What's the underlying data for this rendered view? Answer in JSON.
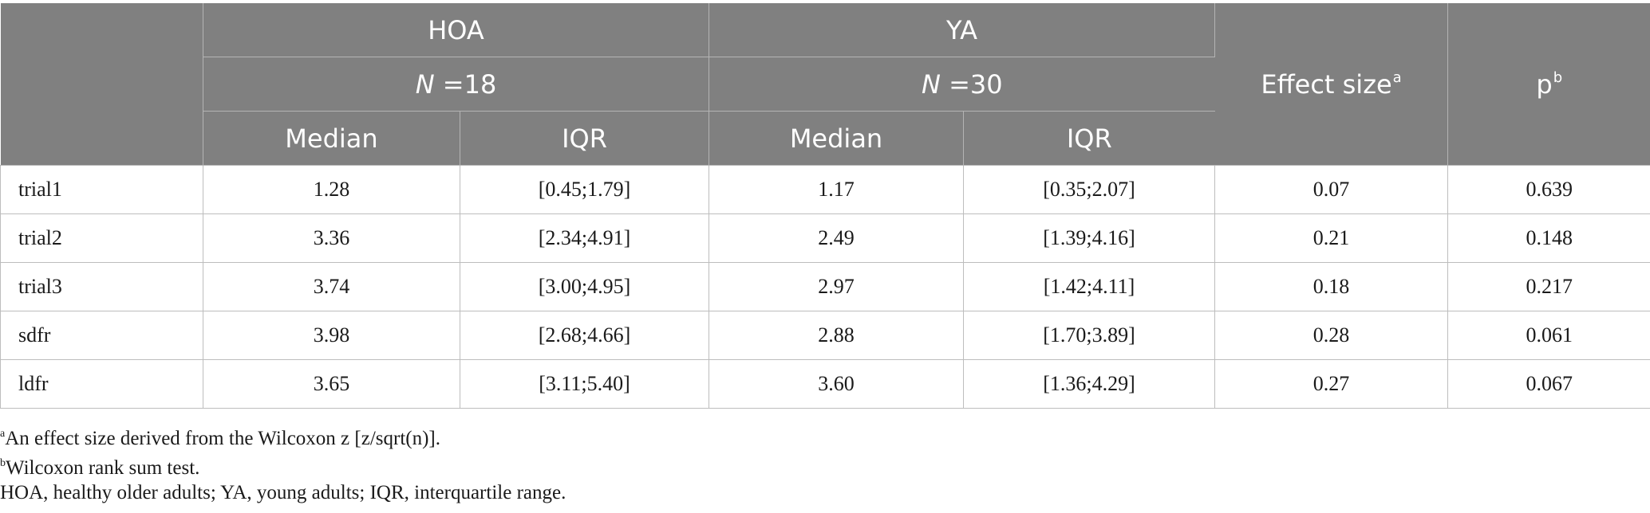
{
  "table": {
    "header": {
      "group1": {
        "label": "HOA",
        "n_prefix": "N",
        "n_value": " =18"
      },
      "group2": {
        "label": "YA",
        "n_prefix": "N",
        "n_value": " =30"
      },
      "effect_size": {
        "label": "Effect size",
        "mark": "a"
      },
      "p": {
        "label": "p",
        "mark": "b"
      },
      "median": "Median",
      "iqr": "IQR"
    },
    "rows": [
      {
        "label": "trial1",
        "hoa_median": "1.28",
        "hoa_iqr": "[0.45;1.79]",
        "ya_median": "1.17",
        "ya_iqr": "[0.35;2.07]",
        "effect_size": "0.07",
        "p": "0.639"
      },
      {
        "label": "trial2",
        "hoa_median": "3.36",
        "hoa_iqr": "[2.34;4.91]",
        "ya_median": "2.49",
        "ya_iqr": "[1.39;4.16]",
        "effect_size": "0.21",
        "p": "0.148"
      },
      {
        "label": "trial3",
        "hoa_median": "3.74",
        "hoa_iqr": "[3.00;4.95]",
        "ya_median": "2.97",
        "ya_iqr": "[1.42;4.11]",
        "effect_size": "0.18",
        "p": "0.217"
      },
      {
        "label": "sdfr",
        "hoa_median": "3.98",
        "hoa_iqr": "[2.68;4.66]",
        "ya_median": "2.88",
        "ya_iqr": "[1.70;3.89]",
        "effect_size": "0.28",
        "p": "0.061"
      },
      {
        "label": "ldfr",
        "hoa_median": "3.65",
        "hoa_iqr": "[3.11;5.40]",
        "ya_median": "3.60",
        "ya_iqr": "[1.36;4.29]",
        "effect_size": "0.27",
        "p": "0.067"
      }
    ]
  },
  "notes": [
    {
      "mark": "a",
      "text": "An effect size derived from the Wilcoxon z [z/sqrt(n)]."
    },
    {
      "mark": "b",
      "text": "Wilcoxon rank sum test."
    },
    {
      "mark": "",
      "text": "HOA, healthy older adults; YA, young adults; IQR, interquartile range."
    }
  ]
}
